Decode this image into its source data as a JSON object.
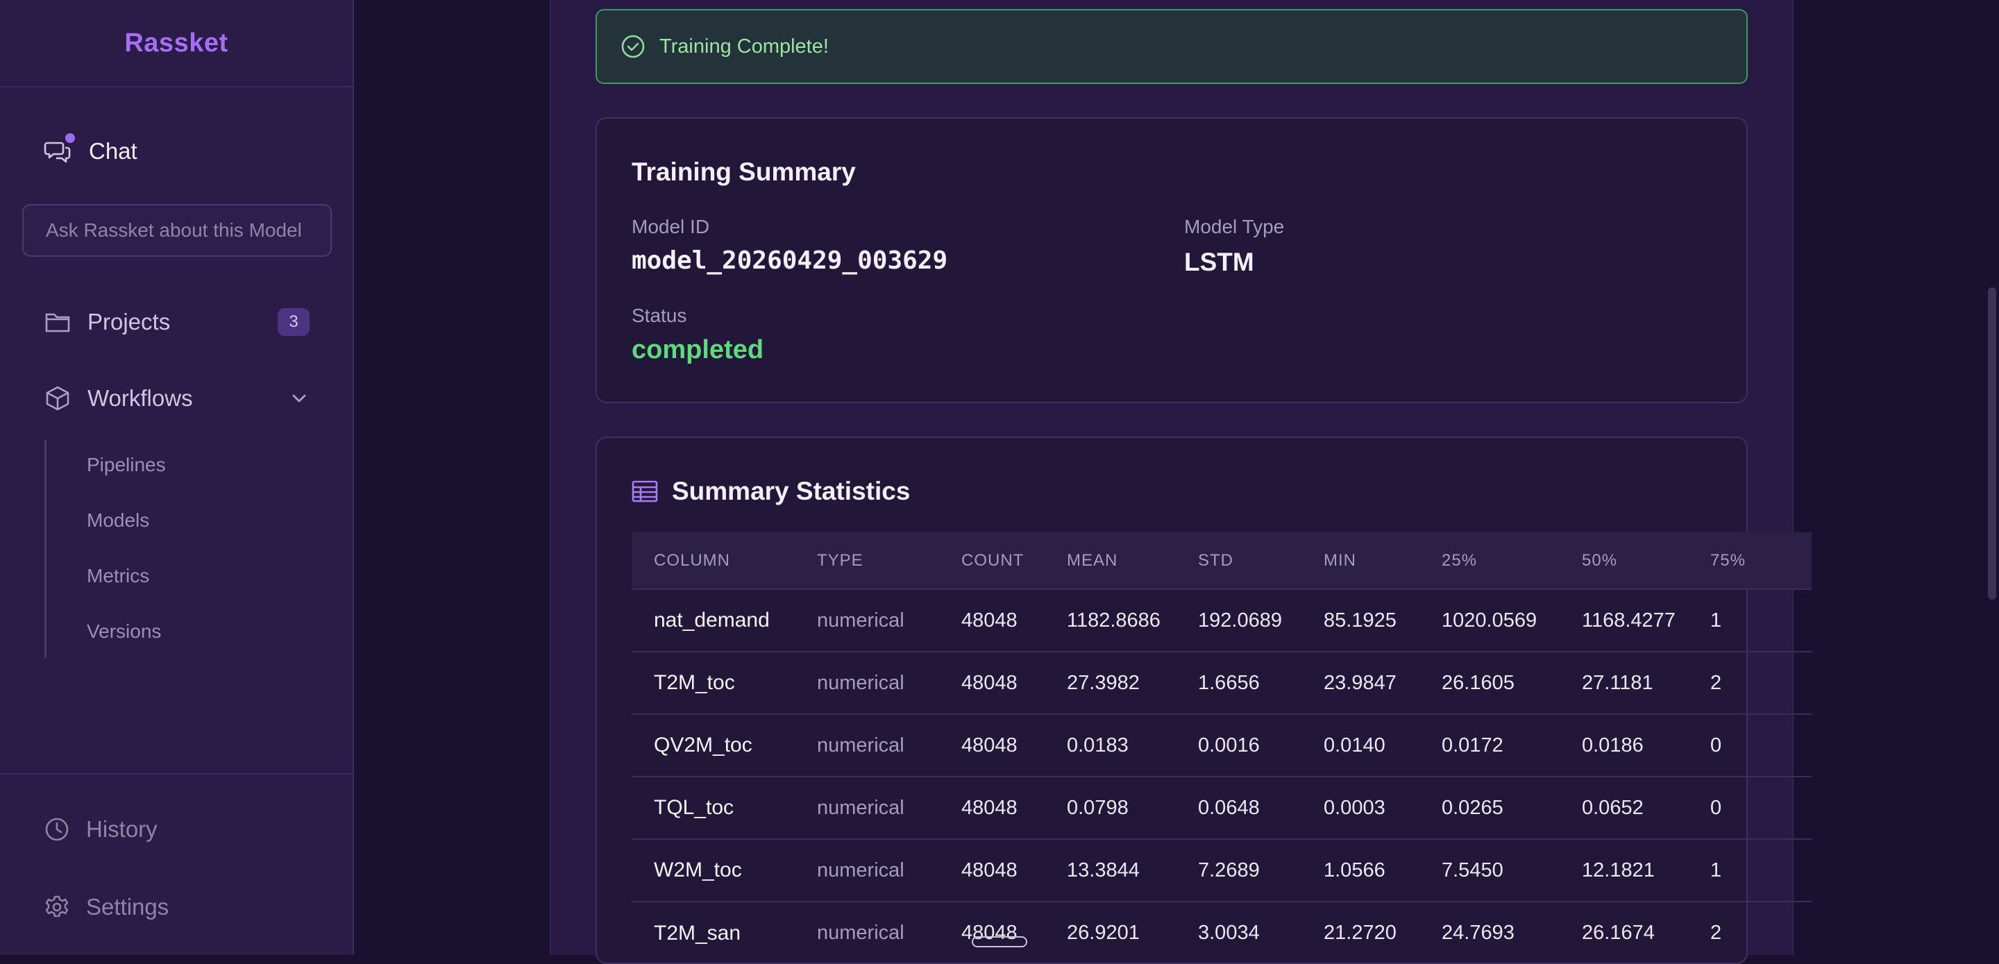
{
  "sidebar": {
    "brand": "Rassket",
    "chat": {
      "label": "Chat",
      "icon": "chat-bubbles-icon"
    },
    "ask_placeholder": "Ask Rassket about this Model",
    "projects": {
      "label": "Projects",
      "count": "3",
      "icon": "folder-icon"
    },
    "workflows": {
      "label": "Workflows",
      "icon": "cube-icon",
      "items": [
        "Pipelines",
        "Models",
        "Metrics",
        "Versions"
      ]
    },
    "history": {
      "label": "History",
      "icon": "clock-icon"
    },
    "settings": {
      "label": "Settings",
      "icon": "gear-icon"
    }
  },
  "alert": {
    "message": "Training Complete!",
    "icon": "check-circle-icon",
    "color": "#3a9a5e"
  },
  "training_summary": {
    "title": "Training Summary",
    "model_id_label": "Model ID",
    "model_id": "model_20260429_003629",
    "model_type_label": "Model Type",
    "model_type": "LSTM",
    "status_label": "Status",
    "status": "completed"
  },
  "summary_statistics": {
    "title": "Summary Statistics",
    "icon": "table-icon",
    "columns": [
      "COLUMN",
      "TYPE",
      "COUNT",
      "MEAN",
      "STD",
      "MIN",
      "25%",
      "50%",
      "75%"
    ],
    "rows": [
      [
        "nat_demand",
        "numerical",
        "48048",
        "1182.8686",
        "192.0689",
        "85.1925",
        "1020.0569",
        "1168.4277",
        "1"
      ],
      [
        "T2M_toc",
        "numerical",
        "48048",
        "27.3982",
        "1.6656",
        "23.9847",
        "26.1605",
        "27.1181",
        "2"
      ],
      [
        "QV2M_toc",
        "numerical",
        "48048",
        "0.0183",
        "0.0016",
        "0.0140",
        "0.0172",
        "0.0186",
        "0"
      ],
      [
        "TQL_toc",
        "numerical",
        "48048",
        "0.0798",
        "0.0648",
        "0.0003",
        "0.0265",
        "0.0652",
        "0"
      ],
      [
        "W2M_toc",
        "numerical",
        "48048",
        "13.3844",
        "7.2689",
        "1.0566",
        "7.5450",
        "12.1821",
        "1"
      ],
      [
        "T2M_san",
        "numerical",
        "48048",
        "26.9201",
        "3.0034",
        "21.2720",
        "24.7693",
        "26.1674",
        "2"
      ]
    ]
  },
  "colors": {
    "accent": "#a66ef3",
    "success": "#5ed97c",
    "background": "#1a1130"
  }
}
